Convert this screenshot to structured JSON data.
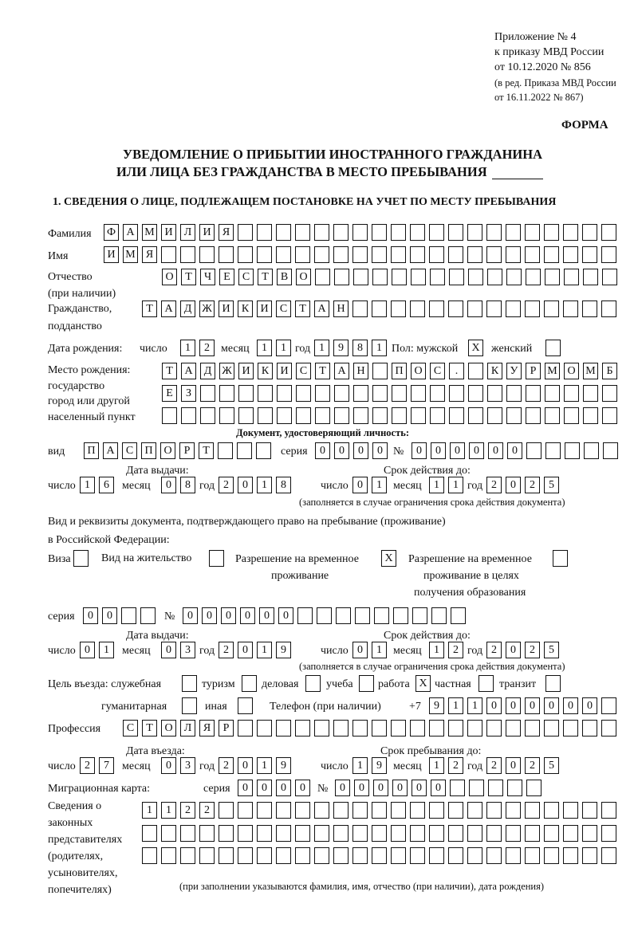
{
  "header": {
    "appendix_lines": [
      "Приложение № 4",
      "к приказу МВД России",
      "от 10.12.2020 № 856"
    ],
    "edition_lines": [
      "(в ред. Приказа МВД России",
      "от 16.11.2022 № 867)"
    ],
    "form_label": "ФОРМА",
    "title_line1": "УВЕДОМЛЕНИЕ О ПРИБЫТИИ ИНОСТРАННОГО ГРАЖДАНИНА",
    "title_line2": "ИЛИ ЛИЦА БЕЗ ГРАЖДАНСТВА В МЕСТО ПРЕБЫВАНИЯ",
    "section_title": "1. СВЕДЕНИЯ О ЛИЦЕ, ПОДЛЕЖАЩЕМ ПОСТАНОВКЕ НА УЧЕТ ПО МЕСТУ ПРЕБЫВАНИЯ"
  },
  "labels": {
    "surname": "Фамилия",
    "name": "Имя",
    "patronymic": "Отчество",
    "patronymic_note": "(при наличии)",
    "citizenship1": "Гражданство,",
    "citizenship2": "подданство",
    "birth_date": "Дата рождения:",
    "day": "число",
    "month": "месяц",
    "year": "год",
    "sex_male": "Пол: мужской",
    "sex_female": "женский",
    "birthplace1": "Место рождения:",
    "birthplace2": "государство",
    "birthplace3": "город или другой",
    "birthplace4": "населенный пункт",
    "id_doc": "Документ, удостоверяющий личность:",
    "kind": "вид",
    "series": "серия",
    "number": "№",
    "issue_date": "Дата выдачи:",
    "valid_until": "Срок действия до:",
    "validity_note": "(заполняется в случае ограничения срока действия документа)",
    "right_doc1": "Вид и реквизиты документа, подтверждающего право на пребывание (проживание)",
    "right_doc2": "в Российской Федерации:",
    "visa": "Виза",
    "residence_permit": "Вид на жительство",
    "temp_residence1": "Разрешение на временное",
    "temp_residence2": "проживание",
    "temp_edu1": "Разрешение на временное",
    "temp_edu2": "проживание в целях",
    "temp_edu3": "получения образования",
    "purpose": "Цель въезда: служебная",
    "tourism": "туризм",
    "business": "деловая",
    "study": "учеба",
    "work": "работа",
    "private": "частная",
    "transit": "транзит",
    "humanitarian": "гуманитарная",
    "other": "иная",
    "phone": "Телефон (при наличии)",
    "phone_prefix": "+7",
    "profession": "Профессия",
    "entry_date": "Дата въезда:",
    "stay_until": "Срок пребывания до:",
    "migration_card": "Миграционная карта:",
    "reps": [
      "Сведения о",
      "законных",
      "представителях",
      "(родителях,",
      "усыновителях,",
      "попечителях)"
    ],
    "reps_note": "(при заполнении указываются фамилия, имя, отчество (при наличии), дата рождения)"
  },
  "person": {
    "surname": "ФАМИЛИЯ",
    "name": "ИМЯ",
    "patronymic": "ОТЧЕСТВО",
    "citizenship": "ТАДЖИКИСТАН",
    "birth_day": "12",
    "birth_month": "11",
    "birth_year": "1981",
    "sex_male": "X",
    "sex_female": "",
    "birthplace_line1": "ТАДЖИКИСТАН ПОС. КУРМОМБ",
    "birthplace_line2": "ЕЗ",
    "birthplace_line3": ""
  },
  "id_document": {
    "kind": "ПАСПОРТ",
    "series": "0000",
    "number": "000000",
    "issue_day": "16",
    "issue_month": "08",
    "issue_year": "2018",
    "valid_day": "01",
    "valid_month": "11",
    "valid_year": "2025"
  },
  "right_document": {
    "visa": "",
    "residence_permit": "",
    "temp_residence": "X",
    "temp_edu": "",
    "series": "00",
    "number": "000000",
    "issue_day": "01",
    "issue_month": "03",
    "issue_year": "2019",
    "valid_day": "01",
    "valid_month": "12",
    "valid_year": "2025"
  },
  "purpose": {
    "official": "",
    "tourism": "",
    "business": "",
    "study": "",
    "work": "X",
    "private": "",
    "transit": "",
    "humanitarian": "",
    "other": ""
  },
  "phone": "911000000",
  "profession": "СТОЛЯР",
  "entry": {
    "entry_day": "27",
    "entry_month": "03",
    "entry_year": "2019",
    "stay_day": "19",
    "stay_month": "12",
    "stay_year": "2025"
  },
  "migration_card": {
    "series": "0000",
    "number": "000000"
  },
  "representatives": {
    "line1": "1122",
    "line2": "",
    "line3": ""
  }
}
